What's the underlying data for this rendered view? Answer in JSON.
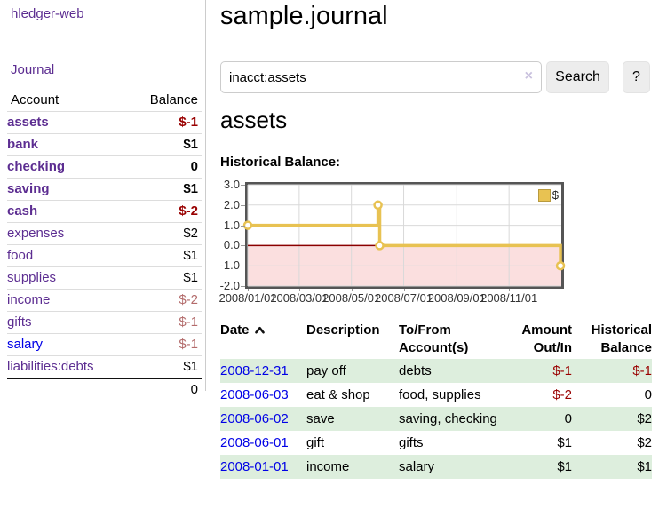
{
  "colors": {
    "link_purple": "#5c2d91",
    "link_blue": "#0000e6",
    "negative_strong": "#990000",
    "negative_muted": "#b36b6b",
    "row_stripe_green": "#ddeedd",
    "series_gold": "#e8c252",
    "negative_region_pink": "#fbdfdf",
    "zero_line_red": "#8b0000",
    "chart_border_gray": "#555555"
  },
  "sidebar": {
    "brand": "hledger-web",
    "nav_journal": "Journal",
    "accounts": {
      "col_account": "Account",
      "col_balance": "Balance",
      "rows": [
        {
          "name": "assets",
          "balance": "$-1",
          "indent": 0,
          "bold": true,
          "balance_style": "neg-strong",
          "link_style": "purple"
        },
        {
          "name": "bank",
          "balance": "$1",
          "indent": 1,
          "bold": true,
          "balance_style": "",
          "link_style": "purple"
        },
        {
          "name": "checking",
          "balance": "0",
          "indent": 2,
          "bold": true,
          "balance_style": "",
          "link_style": "purple"
        },
        {
          "name": "saving",
          "balance": "$1",
          "indent": 2,
          "bold": true,
          "balance_style": "",
          "link_style": "purple"
        },
        {
          "name": "cash",
          "balance": "$-2",
          "indent": 1,
          "bold": true,
          "balance_style": "neg-strong",
          "link_style": "purple"
        },
        {
          "name": "expenses",
          "balance": "$2",
          "indent": 0,
          "bold": false,
          "balance_style": "",
          "link_style": "purple"
        },
        {
          "name": "food",
          "balance": "$1",
          "indent": 1,
          "bold": false,
          "balance_style": "",
          "link_style": "purple"
        },
        {
          "name": "supplies",
          "balance": "$1",
          "indent": 1,
          "bold": false,
          "balance_style": "",
          "link_style": "purple"
        },
        {
          "name": "income",
          "balance": "$-2",
          "indent": 0,
          "bold": false,
          "balance_style": "neg-muted",
          "link_style": "purple"
        },
        {
          "name": "gifts",
          "balance": "$-1",
          "indent": 1,
          "bold": false,
          "balance_style": "neg-muted",
          "link_style": "purple"
        },
        {
          "name": "salary",
          "balance": "$-1",
          "indent": 1,
          "bold": false,
          "balance_style": "neg-muted",
          "link_style": "blue"
        },
        {
          "name": "liabilities:debts",
          "balance": "$1",
          "indent": 0,
          "bold": false,
          "balance_style": "",
          "link_style": "purple"
        }
      ],
      "total": "0"
    }
  },
  "main": {
    "title": "sample.journal",
    "search": {
      "value": "inacct:assets",
      "clear_icon": "×",
      "search_button": "Search",
      "help_button": "?"
    },
    "account_heading": "assets",
    "chart_label": "Historical Balance:"
  },
  "chart_data": {
    "type": "line",
    "step": true,
    "title": "Historical Balance of assets",
    "series": [
      {
        "name": "$",
        "color": "#e8c252",
        "points": [
          [
            "2008-01-01",
            1
          ],
          [
            "2008-06-01",
            2
          ],
          [
            "2008-06-03",
            0
          ],
          [
            "2008-12-31",
            -1
          ]
        ]
      }
    ],
    "x_range": [
      "2008-01-01",
      "2009-01-01"
    ],
    "x_ticks": [
      "2008/01/01",
      "2008/03/01",
      "2008/05/01",
      "2008/07/01",
      "2008/09/01",
      "2008/11/01"
    ],
    "y_ticks": [
      "3.0",
      "2.0",
      "1.0",
      "0.0",
      "-1.0",
      "-2.0"
    ],
    "ylim": [
      -2,
      3
    ],
    "grid": true,
    "legend_position": "top-right",
    "negative_region_fill": "#fbdfdf",
    "zero_line_color": "#8b0000"
  },
  "register": {
    "columns": [
      "Date",
      "Description",
      "To/From Account(s)",
      "Amount Out/In",
      "Historical Balance"
    ],
    "sort": {
      "column": "Date",
      "direction": "ascending"
    },
    "rows": [
      {
        "date": "2008-12-31",
        "description": "pay off",
        "accounts": "debts",
        "amount": "$-1",
        "amount_negative": true,
        "balance": "$-1",
        "balance_negative": true
      },
      {
        "date": "2008-06-03",
        "description": "eat & shop",
        "accounts": "food, supplies",
        "amount": "$-2",
        "amount_negative": true,
        "balance": "0",
        "balance_negative": false
      },
      {
        "date": "2008-06-02",
        "description": "save",
        "accounts": "saving, checking",
        "amount": "0",
        "amount_negative": false,
        "balance": "$2",
        "balance_negative": false
      },
      {
        "date": "2008-06-01",
        "description": "gift",
        "accounts": "gifts",
        "amount": "$1",
        "amount_negative": false,
        "balance": "$2",
        "balance_negative": false
      },
      {
        "date": "2008-01-01",
        "description": "income",
        "accounts": "salary",
        "amount": "$1",
        "amount_negative": false,
        "balance": "$1",
        "balance_negative": false
      }
    ]
  }
}
